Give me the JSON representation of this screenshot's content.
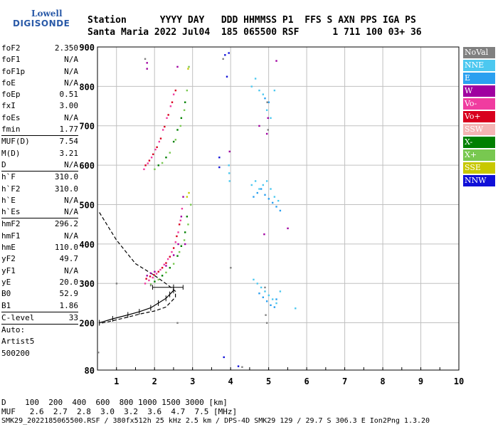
{
  "logo": {
    "line1": "Lowell",
    "line2": "DIGISONDE"
  },
  "header": {
    "line1": "Station      YYYY DAY   DDD HHMMSS P1  FFS S AXN PPS IGA PS",
    "line2": "Santa Maria 2022 Jul04  185 065500 RSF      1 711 100 03+ 36"
  },
  "params": [
    {
      "k": "foF2",
      "v": "2.350"
    },
    {
      "k": "foF1",
      "v": "N/A"
    },
    {
      "k": "foF1p",
      "v": "N/A"
    },
    {
      "k": "foE",
      "v": "N/A"
    },
    {
      "k": "foEp",
      "v": "0.51"
    },
    {
      "k": "fxI",
      "v": "3.00"
    },
    {
      "k": "foEs",
      "v": "N/A"
    },
    {
      "k": "fmin",
      "v": "1.77"
    },
    {
      "sep": true
    },
    {
      "k": "MUF(D)",
      "v": "7.54"
    },
    {
      "k": "M(D)",
      "v": "3.21"
    },
    {
      "k": "D",
      "v": "N/A"
    },
    {
      "sep": true
    },
    {
      "k": "h`F",
      "v": "310.0"
    },
    {
      "k": "h`F2",
      "v": "310.0"
    },
    {
      "k": "h`E",
      "v": "N/A"
    },
    {
      "k": "h`Es",
      "v": "N/A"
    },
    {
      "sep": true
    },
    {
      "k": "hmF2",
      "v": "296.2"
    },
    {
      "k": "hmF1",
      "v": "N/A"
    },
    {
      "k": "hmE",
      "v": "110.0"
    },
    {
      "k": "yF2",
      "v": "49.7"
    },
    {
      "k": "yF1",
      "v": "N/A"
    },
    {
      "k": "yE",
      "v": "20.0"
    },
    {
      "k": "B0",
      "v": "52.9"
    },
    {
      "k": "B1",
      "v": "1.86"
    },
    {
      "sep": true
    },
    {
      "k": "C-level",
      "v": "33"
    },
    {
      "sep": true
    },
    {
      "k": "Auto:",
      "v": ""
    },
    {
      "k": "Artist5",
      "v": ""
    },
    {
      "k": "500200",
      "v": ""
    }
  ],
  "footer": {
    "line1": "D    100  200  400  600  800 1000 1500 3000 [km]",
    "line2": "MUF   2.6  2.7  2.8  3.0  3.2  3.6  4.7  7.5 [MHz]",
    "line3": "SMK29_2022185065500.RSF / 380fx512h 25 kHz 2.5 km / DPS-4D SMK29 129 / 29.7 S 306.3 E Ion2Png 1.3.20"
  },
  "legend": [
    {
      "label": "NoVal",
      "color": "#808080"
    },
    {
      "label": "NNE",
      "color": "#4cc8f0"
    },
    {
      "label": "E",
      "color": "#2aa0f0"
    },
    {
      "label": "W",
      "color": "#a000a0"
    },
    {
      "label": "Vo-",
      "color": "#f03ca0"
    },
    {
      "label": "Vo+",
      "color": "#d8001e"
    },
    {
      "label": "SSW",
      "color": "#f4b4b4"
    },
    {
      "label": "X-",
      "color": "#008000"
    },
    {
      "label": "X+",
      "color": "#78c850"
    },
    {
      "label": "SSE",
      "color": "#c8c800"
    },
    {
      "label": "NNW",
      "color": "#1010d8"
    }
  ],
  "chart_data": {
    "type": "scatter",
    "title": "",
    "xlabel": "",
    "ylabel": "",
    "xlim": [
      0.5,
      10
    ],
    "ylim": [
      80,
      900
    ],
    "xticks": [
      1,
      2,
      3,
      4,
      5,
      6,
      7,
      8,
      9,
      10
    ],
    "yticks": [
      80,
      200,
      300,
      400,
      500,
      600,
      700,
      800,
      900
    ],
    "grid": true,
    "legend_position": "right",
    "series": [
      {
        "name": "Vo-",
        "color": "#f03ca0",
        "points": [
          [
            1.75,
            300
          ],
          [
            1.85,
            308
          ],
          [
            1.95,
            315
          ],
          [
            2.05,
            325
          ],
          [
            2.15,
            335
          ],
          [
            2.25,
            348
          ],
          [
            2.35,
            362
          ],
          [
            2.45,
            380
          ],
          [
            2.55,
            405
          ],
          [
            2.62,
            430
          ],
          [
            2.68,
            460
          ],
          [
            2.72,
            490
          ],
          [
            1.72,
            590
          ],
          [
            1.82,
            605
          ],
          [
            1.92,
            620
          ],
          [
            2.02,
            640
          ],
          [
            2.12,
            660
          ],
          [
            2.22,
            690
          ],
          [
            2.32,
            720
          ],
          [
            2.42,
            750
          ],
          [
            2.5,
            780
          ]
        ]
      },
      {
        "name": "Vo+",
        "color": "#d8001e",
        "points": [
          [
            1.78,
            312
          ],
          [
            1.88,
            318
          ],
          [
            1.98,
            322
          ],
          [
            2.1,
            330
          ],
          [
            2.2,
            340
          ],
          [
            2.3,
            352
          ],
          [
            2.4,
            368
          ],
          [
            2.5,
            390
          ],
          [
            2.58,
            420
          ],
          [
            2.65,
            450
          ],
          [
            1.76,
            600
          ],
          [
            1.86,
            612
          ],
          [
            1.96,
            628
          ],
          [
            2.06,
            646
          ],
          [
            2.16,
            668
          ],
          [
            2.26,
            698
          ],
          [
            2.36,
            728
          ],
          [
            2.46,
            760
          ],
          [
            2.55,
            790
          ]
        ]
      },
      {
        "name": "W",
        "color": "#a000a0",
        "points": [
          [
            1.8,
            320
          ],
          [
            1.9,
            326
          ],
          [
            2.0,
            330
          ],
          [
            2.3,
            345
          ],
          [
            2.5,
            372
          ],
          [
            2.62,
            400
          ],
          [
            2.7,
            470
          ],
          [
            2.75,
            520
          ],
          [
            2.8,
            400
          ],
          [
            1.8,
            860
          ],
          [
            1.8,
            845
          ],
          [
            2.6,
            850
          ],
          [
            3.97,
            635
          ],
          [
            4.75,
            700
          ],
          [
            4.95,
            680
          ],
          [
            4.98,
            720
          ],
          [
            5.2,
            865
          ],
          [
            5.5,
            440
          ],
          [
            4.88,
            425
          ]
        ]
      },
      {
        "name": "X-",
        "color": "#008000",
        "points": [
          [
            2.0,
            305
          ],
          [
            2.2,
            320
          ],
          [
            2.4,
            340
          ],
          [
            2.6,
            370
          ],
          [
            2.7,
            395
          ],
          [
            2.8,
            430
          ],
          [
            2.85,
            470
          ],
          [
            2.1,
            600
          ],
          [
            2.3,
            620
          ],
          [
            2.5,
            660
          ],
          [
            2.6,
            690
          ],
          [
            2.7,
            720
          ],
          [
            2.8,
            760
          ]
        ]
      },
      {
        "name": "X+",
        "color": "#78c850",
        "points": [
          [
            1.9,
            298
          ],
          [
            2.1,
            310
          ],
          [
            2.3,
            328
          ],
          [
            2.5,
            350
          ],
          [
            2.65,
            380
          ],
          [
            2.78,
            410
          ],
          [
            2.88,
            450
          ],
          [
            2.95,
            500
          ],
          [
            2.0,
            590
          ],
          [
            2.2,
            606
          ],
          [
            2.4,
            632
          ],
          [
            2.55,
            665
          ],
          [
            2.68,
            700
          ],
          [
            2.78,
            740
          ],
          [
            2.85,
            790
          ],
          [
            2.9,
            850
          ]
        ]
      },
      {
        "name": "SSE",
        "color": "#c8c800",
        "points": [
          [
            2.85,
            520
          ],
          [
            2.9,
            530
          ],
          [
            2.88,
            845
          ]
        ]
      },
      {
        "name": "E",
        "color": "#2aa0f0",
        "points": [
          [
            4.6,
            520
          ],
          [
            4.7,
            530
          ],
          [
            4.8,
            540
          ],
          [
            4.9,
            525
          ],
          [
            5.0,
            515
          ],
          [
            5.1,
            505
          ],
          [
            5.2,
            495
          ],
          [
            5.3,
            485
          ],
          [
            4.75,
            275
          ],
          [
            4.85,
            265
          ],
          [
            4.95,
            255
          ],
          [
            5.05,
            245
          ],
          [
            5.15,
            240
          ],
          [
            5.2,
            260
          ],
          [
            4.9,
            770
          ],
          [
            5.0,
            760
          ]
        ]
      },
      {
        "name": "NNE",
        "color": "#4cc8f0",
        "points": [
          [
            4.55,
            550
          ],
          [
            4.65,
            560
          ],
          [
            4.75,
            540
          ],
          [
            4.85,
            550
          ],
          [
            4.95,
            560
          ],
          [
            5.05,
            540
          ],
          [
            5.15,
            520
          ],
          [
            5.25,
            510
          ],
          [
            4.55,
            800
          ],
          [
            4.65,
            820
          ],
          [
            4.75,
            790
          ],
          [
            4.85,
            780
          ],
          [
            4.95,
            740
          ],
          [
            5.05,
            720
          ],
          [
            5.15,
            790
          ],
          [
            4.6,
            310
          ],
          [
            4.7,
            300
          ],
          [
            4.8,
            290
          ],
          [
            4.9,
            280
          ],
          [
            5.0,
            270
          ],
          [
            5.1,
            260
          ],
          [
            5.2,
            250
          ],
          [
            5.3,
            280
          ],
          [
            5.7,
            237
          ],
          [
            3.95,
            600
          ],
          [
            3.96,
            580
          ],
          [
            3.97,
            560
          ]
        ]
      },
      {
        "name": "NNW",
        "color": "#1010d8",
        "points": [
          [
            3.85,
            880
          ],
          [
            3.95,
            885
          ],
          [
            3.9,
            825
          ],
          [
            3.7,
            620
          ],
          [
            3.7,
            595
          ],
          [
            3.82,
            113
          ],
          [
            4.2,
            90
          ]
        ]
      },
      {
        "name": "NoVal",
        "color": "#808080",
        "points": [
          [
            1.0,
            300
          ],
          [
            1.9,
            295
          ],
          [
            2.6,
            200
          ],
          [
            4.0,
            340
          ],
          [
            4.9,
            290
          ],
          [
            4.92,
            220
          ],
          [
            4.95,
            200
          ],
          [
            4.96,
            760
          ],
          [
            4.98,
            690
          ],
          [
            1.75,
            870
          ],
          [
            3.8,
            870
          ],
          [
            4.3,
            88
          ],
          [
            0.52,
            125
          ]
        ]
      }
    ],
    "profile": [
      [
        0.55,
        480
      ],
      [
        1.0,
        410
      ],
      [
        1.5,
        350
      ],
      [
        2.0,
        320
      ],
      [
        2.35,
        296
      ],
      [
        2.55,
        280
      ],
      [
        2.55,
        265
      ],
      [
        2.3,
        240
      ],
      [
        2.0,
        230
      ],
      [
        1.6,
        222
      ],
      [
        1.2,
        212
      ],
      [
        0.8,
        203
      ],
      [
        0.55,
        198
      ]
    ],
    "trace": [
      [
        0.55,
        200
      ],
      [
        0.9,
        210
      ],
      [
        1.3,
        220
      ],
      [
        1.6,
        228
      ],
      [
        1.9,
        238
      ],
      [
        2.1,
        250
      ],
      [
        2.3,
        262
      ],
      [
        2.4,
        272
      ],
      [
        2.5,
        282
      ],
      [
        2.5,
        290
      ]
    ]
  }
}
